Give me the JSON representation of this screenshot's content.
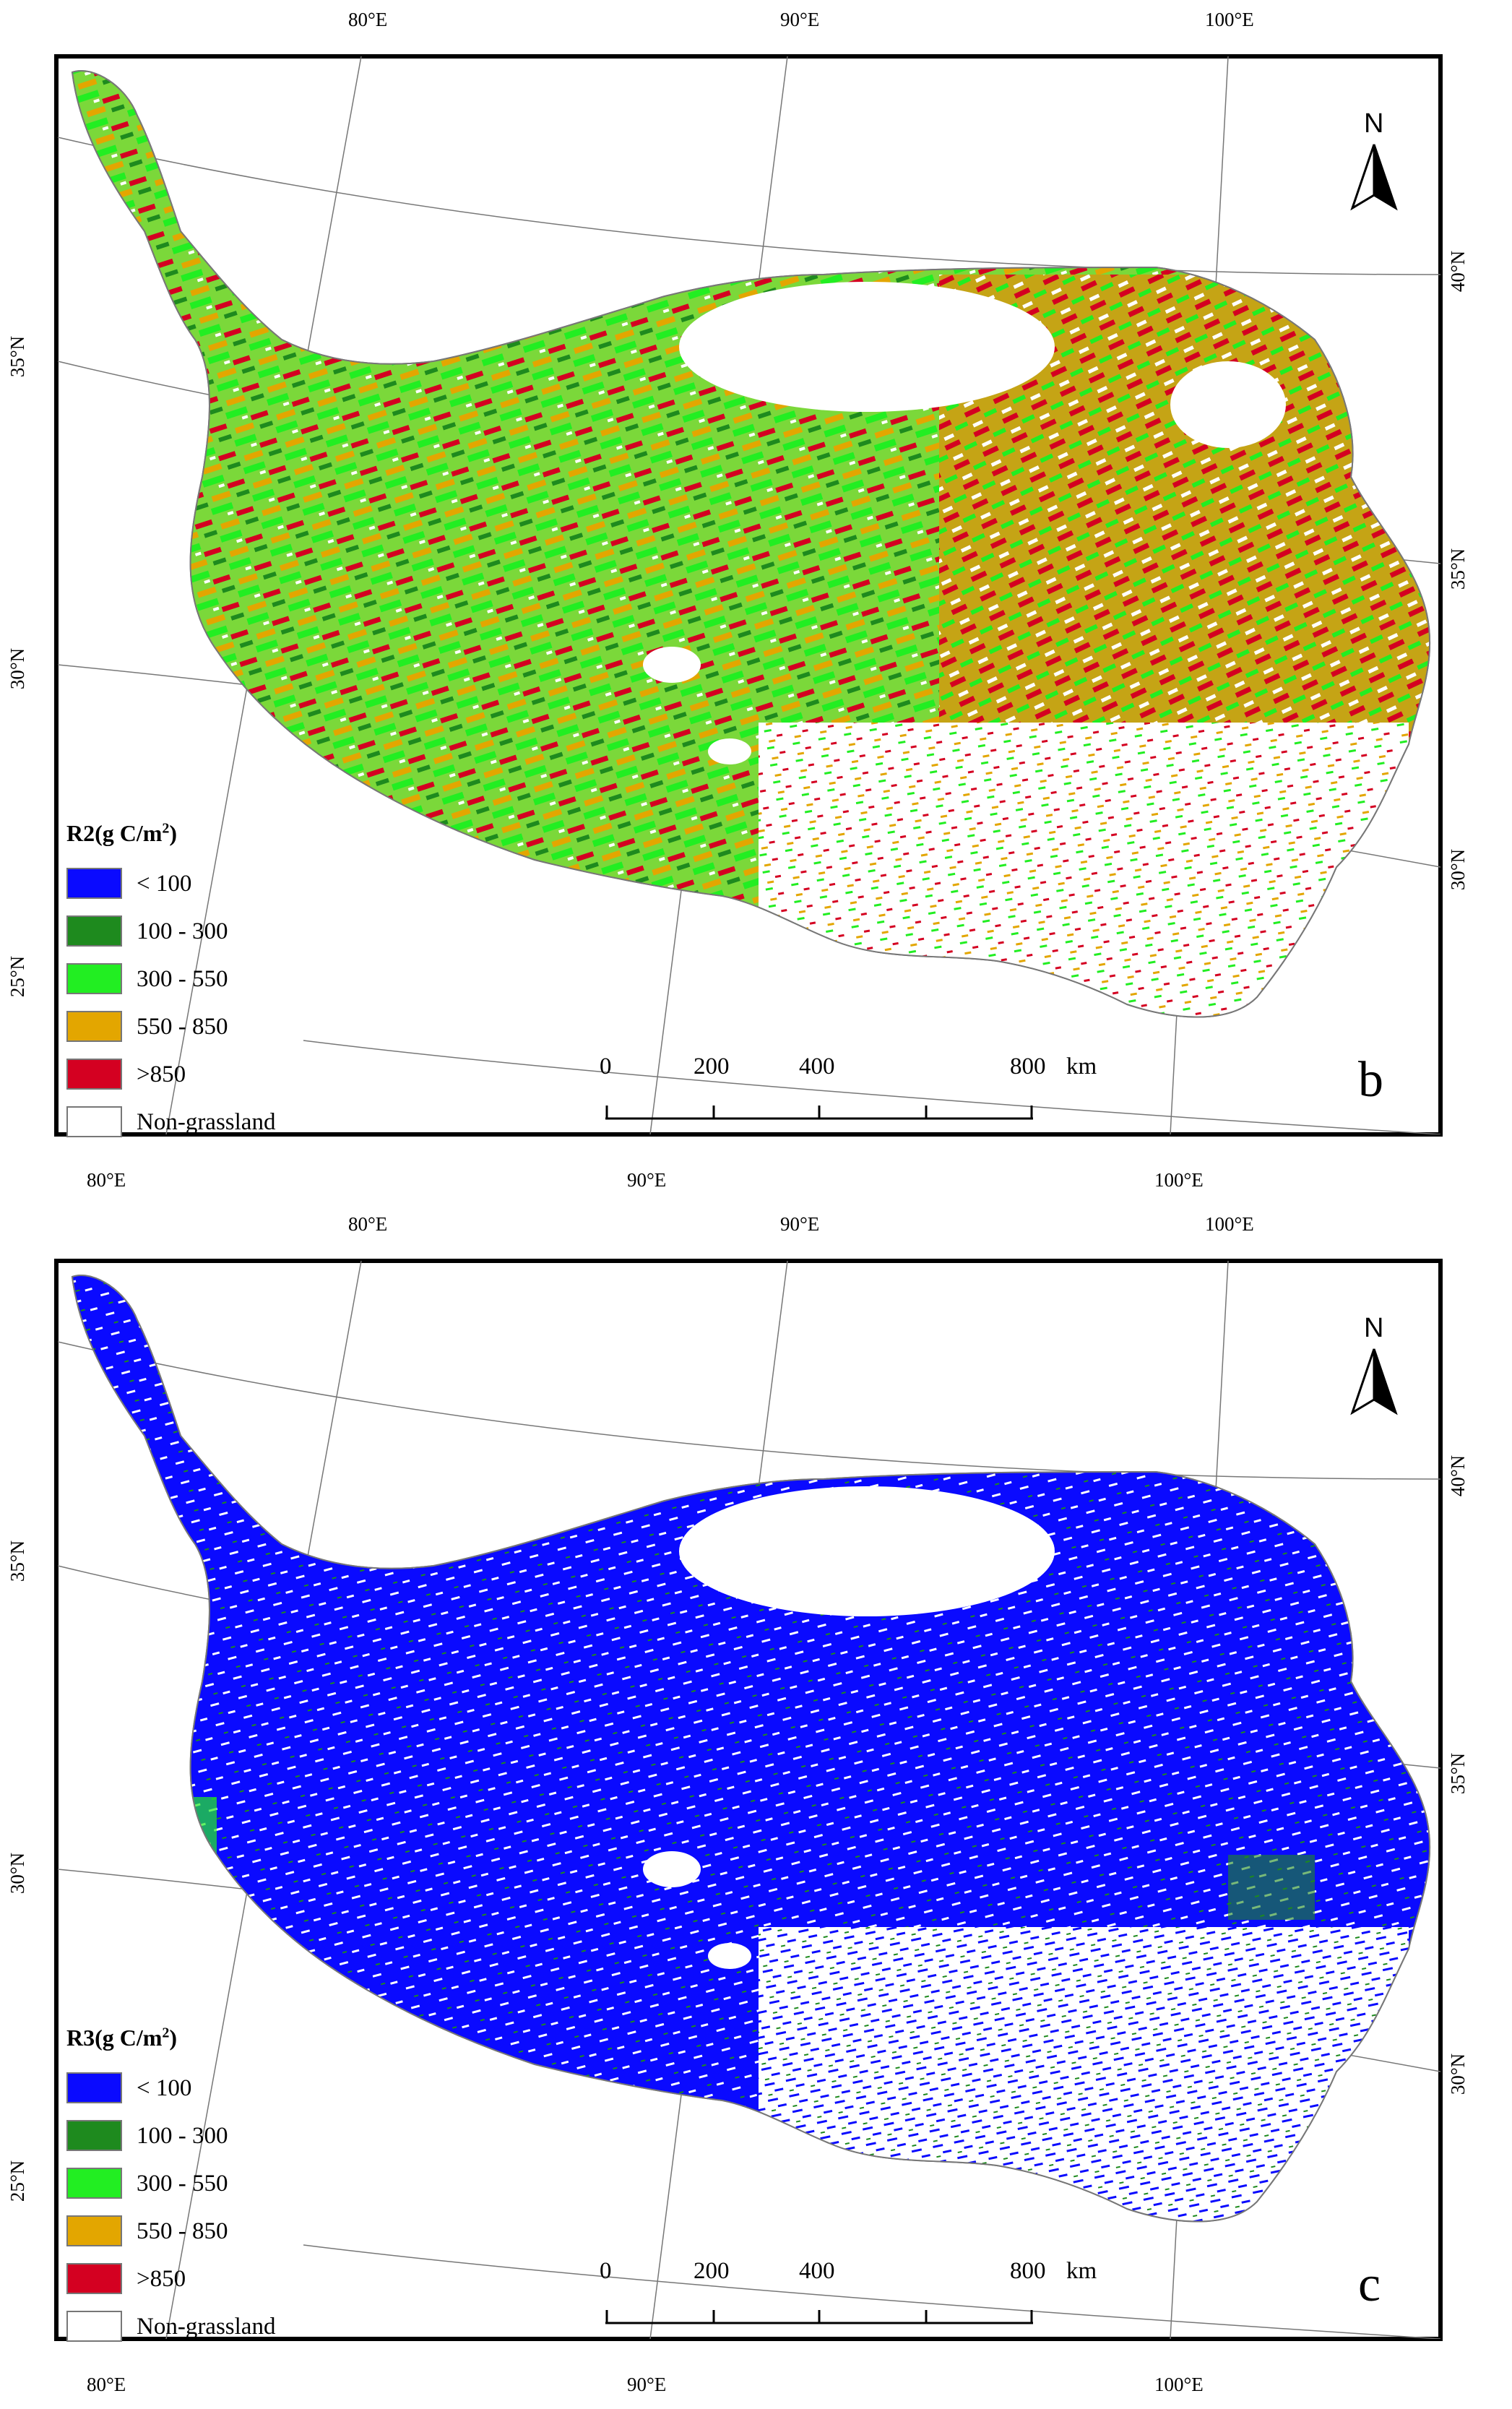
{
  "panels": [
    {
      "letter": "b",
      "legend_title": "R2(g C/m",
      "legend_title_sup": "2",
      "legend_title_close": ")",
      "dominant_class": "mixed",
      "north": "N",
      "lon_top": [
        "80°E",
        "90°E",
        "100°E"
      ],
      "lon_bottom": [
        "80°E",
        "90°E",
        "100°E"
      ],
      "lat_left": [
        "35°N",
        "30°N",
        "25°N"
      ],
      "lat_right": [
        "40°N",
        "35°N",
        "30°N"
      ],
      "scale": {
        "labels": [
          "0",
          "200",
          "400",
          "800"
        ],
        "unit": "km"
      }
    },
    {
      "letter": "c",
      "legend_title": "R3(g C/m",
      "legend_title_sup": "2",
      "legend_title_close": ")",
      "dominant_class": "< 100",
      "north": "N",
      "lon_top": [
        "80°E",
        "90°E",
        "100°E"
      ],
      "lon_bottom": [
        "80°E",
        "90°E",
        "100°E"
      ],
      "lat_left": [
        "35°N",
        "30°N",
        "25°N"
      ],
      "lat_right": [
        "40°N",
        "35°N",
        "30°N"
      ],
      "scale": {
        "labels": [
          "0",
          "200",
          "400",
          "800"
        ],
        "unit": "km"
      }
    }
  ],
  "legend": [
    {
      "label": "< 100",
      "color": "#0a0aff"
    },
    {
      "label": "100 - 300",
      "color": "#1e8a1e"
    },
    {
      "label": "300 - 550",
      "color": "#22ee22"
    },
    {
      "label": "550 - 850",
      "color": "#e3a600"
    },
    {
      "label": ">850",
      "color": "#d40021"
    },
    {
      "label": "Non-grassland",
      "color": "#ffffff"
    }
  ]
}
